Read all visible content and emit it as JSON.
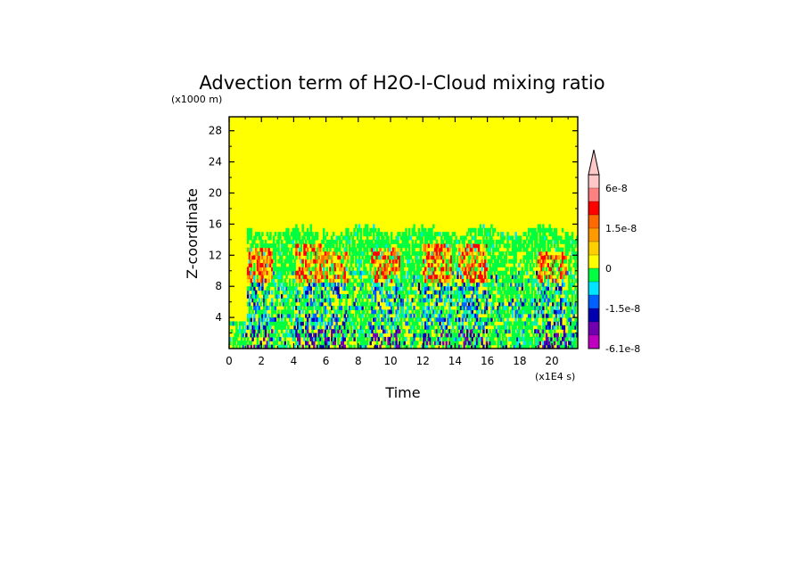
{
  "chart_data": {
    "type": "heatmap",
    "title": "Advection term of H2O-I-Cloud mixing ratio",
    "xlabel": "Time",
    "ylabel": "Z-coordinate",
    "x_unit": "(x1E4 s)",
    "y_unit": "(x1000 m)",
    "xlim": [
      0,
      21.6
    ],
    "ylim": [
      0,
      29.8
    ],
    "x_ticks": [
      0,
      2,
      4,
      6,
      8,
      10,
      12,
      14,
      16,
      18,
      20
    ],
    "y_ticks": [
      4,
      8,
      12,
      16,
      20,
      24,
      28
    ],
    "x_tick_labels": [
      "0",
      "2",
      "4",
      "6",
      "8",
      "10",
      "12",
      "14",
      "16",
      "18",
      "20"
    ],
    "y_tick_labels": [
      "4",
      "8",
      "12",
      "16",
      "20",
      "24",
      "28"
    ],
    "background_color": "#ffff00",
    "active_layer_top": 15,
    "active_start_time": 1,
    "convective_bursts": [
      {
        "t": 1.8,
        "zmax": 12.5,
        "strength": 1.0
      },
      {
        "t": 5.0,
        "zmax": 13.0,
        "strength": 0.8
      },
      {
        "t": 6.4,
        "zmax": 12.0,
        "strength": 0.7
      },
      {
        "t": 9.6,
        "zmax": 12.5,
        "strength": 0.85
      },
      {
        "t": 12.8,
        "zmax": 13.0,
        "strength": 0.9
      },
      {
        "t": 15.0,
        "zmax": 13.0,
        "strength": 0.9
      },
      {
        "t": 20.0,
        "zmax": 12.0,
        "strength": 0.85
      }
    ],
    "colorbar": {
      "colors_top_to_bottom": [
        "#ffc8c8",
        "#ff8080",
        "#ff0000",
        "#ff6a00",
        "#ff9900",
        "#ffd000",
        "#ffff00",
        "#00ff40",
        "#00e5ff",
        "#0060ff",
        "#0000b0",
        "#7000b0",
        "#c000c0"
      ],
      "labels": [
        {
          "text": "6e-8",
          "index": 1
        },
        {
          "text": "1.5e-8",
          "index": 4
        },
        {
          "text": "0",
          "index": 7
        },
        {
          "text": "-1.5e-8",
          "index": 10
        },
        {
          "text": "-6.1e-8",
          "index": 13
        }
      ]
    }
  }
}
